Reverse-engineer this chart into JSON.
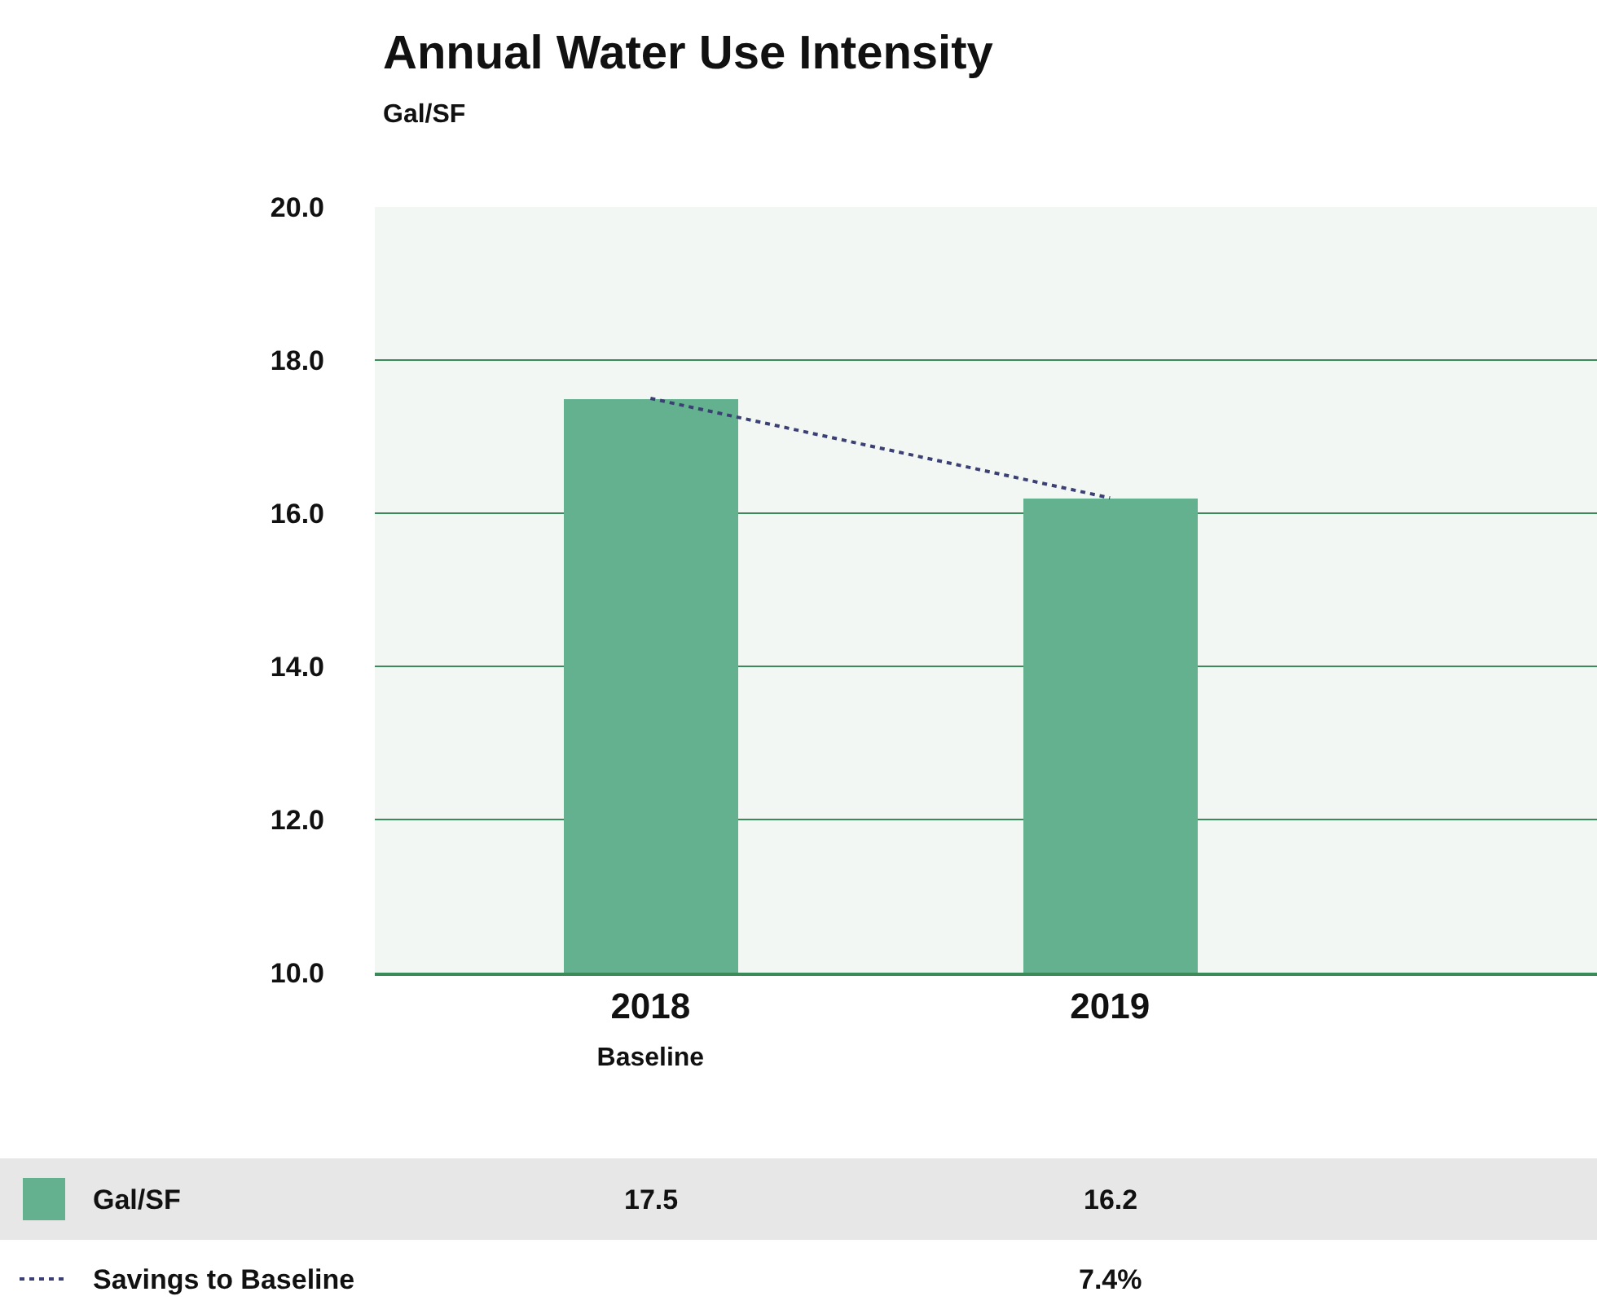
{
  "chart_data": {
    "type": "bar",
    "title": "Annual Water Use Intensity",
    "subtitle": "Gal/SF",
    "categories": [
      "2018\nBaseline",
      "2019"
    ],
    "series": [
      {
        "name": "Gal/SF",
        "color": "#64b18f",
        "values": [
          17.5,
          16.2
        ],
        "value_labels": [
          "17.5",
          "16.2"
        ]
      },
      {
        "name": "Savings to Baseline",
        "type": "line",
        "color": "#3b3f73",
        "line_style": "dotted",
        "marker": "none",
        "values": [
          17.5,
          16.2
        ]
      }
    ],
    "annotations": [
      "7.4%"
    ],
    "ylim": [
      10,
      20
    ],
    "yticks": [
      {
        "value": 10,
        "label": "10.0"
      },
      {
        "value": 12,
        "label": "12.0"
      },
      {
        "value": 14,
        "label": "14.0"
      },
      {
        "value": 16,
        "label": "16.0"
      },
      {
        "value": 18,
        "label": "18.0"
      },
      {
        "value": 20,
        "label": "20.0"
      }
    ],
    "grid": "y",
    "legend": "bottom"
  }
}
